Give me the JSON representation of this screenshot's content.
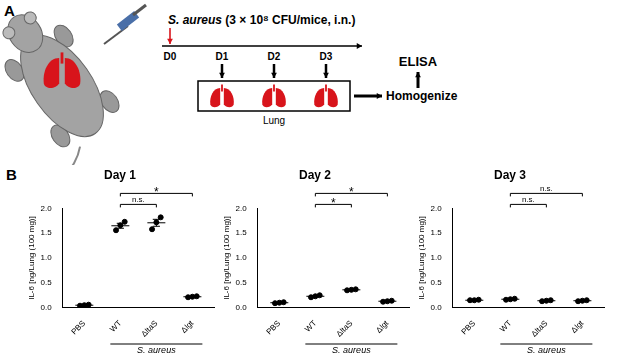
{
  "panel_a": {
    "label": "A",
    "inoculum": {
      "organism": "S. aureus",
      "dose": "(3 × 10⁸ CFU/mice, i.n.)"
    },
    "timeline": [
      "D0",
      "D1",
      "D2",
      "D3"
    ],
    "sample": "Lung",
    "process": "Homogenize",
    "assay": "ELISA"
  },
  "panel_b": {
    "label": "B"
  },
  "chart_data": [
    {
      "type": "scatter",
      "title": "Day 1",
      "y_label": "IL-6 [ng/Lung (100 mg)]",
      "categories": [
        "PBS",
        "WT",
        "ΔltaS",
        "Δlgt"
      ],
      "group": {
        "label": "S. aureus",
        "categories": [
          "WT",
          "ΔltaS",
          "Δlgt"
        ]
      },
      "points": [
        [
          0.04,
          0.05,
          0.06
        ],
        [
          1.56,
          1.66,
          1.73
        ],
        [
          1.58,
          1.72,
          1.82
        ],
        [
          0.21,
          0.22,
          0.23
        ]
      ],
      "means": [
        0.05,
        1.65,
        1.71,
        0.22
      ],
      "errors": [
        0.005,
        0.05,
        0.07,
        0.005
      ],
      "comparisons": [
        {
          "from": "WT",
          "to": "ΔltaS",
          "label": "n.s."
        },
        {
          "from": "WT",
          "to": "Δlgt",
          "label": "*"
        }
      ],
      "ylim": [
        0,
        2.0
      ],
      "yticks": [
        {
          "value": 0,
          "label": "0.0"
        },
        {
          "value": 0.5,
          "label": "0.5"
        },
        {
          "value": 1.0,
          "label": "1.0"
        },
        {
          "value": 1.5,
          "label": "1.5"
        },
        {
          "value": 2.0,
          "label": "2.0"
        }
      ],
      "color": "#000000",
      "marker": "circle",
      "grid": false
    },
    {
      "type": "scatter",
      "title": "Day 2",
      "y_label": "IL-6 [ng/Lung (100 mg)]",
      "categories": [
        "PBS",
        "WT",
        "ΔltaS",
        "Δlgt"
      ],
      "group": {
        "label": "S. aureus",
        "categories": [
          "WT",
          "ΔltaS",
          "Δlgt"
        ]
      },
      "points": [
        [
          0.09,
          0.1,
          0.11
        ],
        [
          0.21,
          0.23,
          0.25
        ],
        [
          0.35,
          0.36,
          0.37
        ],
        [
          0.12,
          0.13,
          0.14
        ]
      ],
      "means": [
        0.1,
        0.23,
        0.36,
        0.13
      ],
      "errors": [
        0.005,
        0.01,
        0.005,
        0.005
      ],
      "comparisons": [
        {
          "from": "WT",
          "to": "ΔltaS",
          "label": "*"
        },
        {
          "from": "WT",
          "to": "Δlgt",
          "label": "*"
        }
      ],
      "ylim": [
        0,
        2.0
      ],
      "yticks": [
        {
          "value": 0,
          "label": "0.0"
        },
        {
          "value": 0.5,
          "label": "0.5"
        },
        {
          "value": 1.0,
          "label": "1.0"
        },
        {
          "value": 1.5,
          "label": "1.5"
        },
        {
          "value": 2.0,
          "label": "2.0"
        }
      ],
      "color": "#000000",
      "marker": "circle",
      "grid": false
    },
    {
      "type": "scatter",
      "title": "Day 3",
      "y_label": "IL-6 [ng/Lung (100 mg)]",
      "categories": [
        "PBS",
        "WT",
        "ΔltaS",
        "Δlgt"
      ],
      "group": {
        "label": "S. aureus",
        "categories": [
          "WT",
          "ΔltaS",
          "Δlgt"
        ]
      },
      "points": [
        [
          0.15,
          0.15,
          0.16
        ],
        [
          0.16,
          0.17,
          0.18
        ],
        [
          0.13,
          0.14,
          0.15
        ],
        [
          0.13,
          0.14,
          0.15
        ]
      ],
      "means": [
        0.15,
        0.17,
        0.14,
        0.14
      ],
      "errors": [
        0.003,
        0.006,
        0.006,
        0.006
      ],
      "comparisons": [
        {
          "from": "WT",
          "to": "ΔltaS",
          "label": "n.s."
        },
        {
          "from": "WT",
          "to": "Δlgt",
          "label": "n.s."
        }
      ],
      "ylim": [
        0,
        2.0
      ],
      "yticks": [
        {
          "value": 0,
          "label": "0.0"
        },
        {
          "value": 0.5,
          "label": "0.5"
        },
        {
          "value": 1.0,
          "label": "1.0"
        },
        {
          "value": 1.5,
          "label": "1.5"
        },
        {
          "value": 2.0,
          "label": "2.0"
        }
      ],
      "color": "#000000",
      "marker": "circle",
      "grid": false
    }
  ]
}
